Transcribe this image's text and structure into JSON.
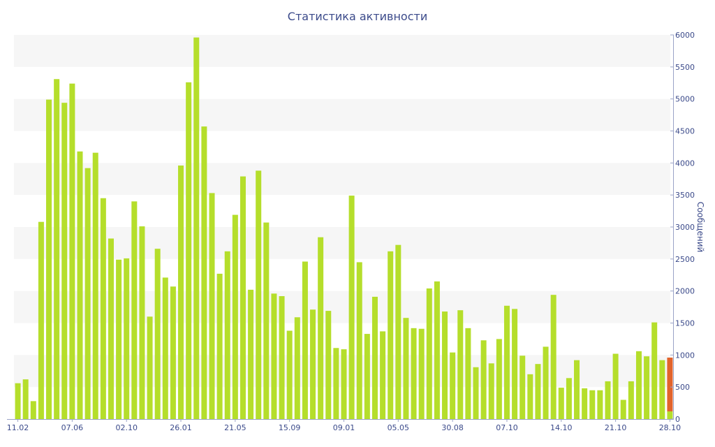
{
  "chart_data": {
    "type": "bar",
    "title": "Статистика активности",
    "xlabel": "",
    "ylabel": "Сообщений",
    "ylim": [
      0,
      6000
    ],
    "yticks": [
      0,
      500,
      1000,
      1500,
      2000,
      2500,
      3000,
      3500,
      4000,
      4500,
      5000,
      5500,
      6000
    ],
    "x_tick_labels": [
      "11.02",
      "07.06",
      "02.10",
      "26.01",
      "21.05",
      "15.09",
      "09.01",
      "05.05",
      "30.08",
      "07.10",
      "14.10",
      "21.10",
      "28.10"
    ],
    "x_tick_positions": [
      0,
      7,
      14,
      21,
      28,
      35,
      42,
      49,
      56,
      63,
      70,
      77,
      84
    ],
    "y_axis_side": "right",
    "grid": "alternating horizontal bands",
    "colors": {
      "bar": "#b5de2b",
      "highlight": "#e2632b",
      "axis_text": "#3b4a8a",
      "band": "#f6f6f6"
    },
    "values": [
      560,
      620,
      280,
      3080,
      4990,
      5310,
      4940,
      5240,
      4180,
      3920,
      4160,
      3450,
      2820,
      2490,
      2510,
      3400,
      3010,
      1600,
      2660,
      2210,
      2070,
      3960,
      5260,
      5960,
      4570,
      3530,
      2270,
      2620,
      3190,
      3790,
      2020,
      3880,
      3070,
      1960,
      1920,
      1380,
      1590,
      2460,
      1710,
      2840,
      1690,
      1110,
      1090,
      3490,
      2450,
      1330,
      1910,
      1370,
      2620,
      2720,
      1580,
      1420,
      1410,
      2040,
      2150,
      1680,
      1040,
      1700,
      1420,
      810,
      1230,
      870,
      1250,
      1770,
      1720,
      990,
      700,
      860,
      1130,
      1940,
      490,
      640,
      920,
      480,
      450,
      450,
      590,
      1020,
      300,
      590,
      1060,
      980,
      1510,
      920,
      960
    ],
    "highlight_index": 84,
    "highlight_base_value": 120
  }
}
